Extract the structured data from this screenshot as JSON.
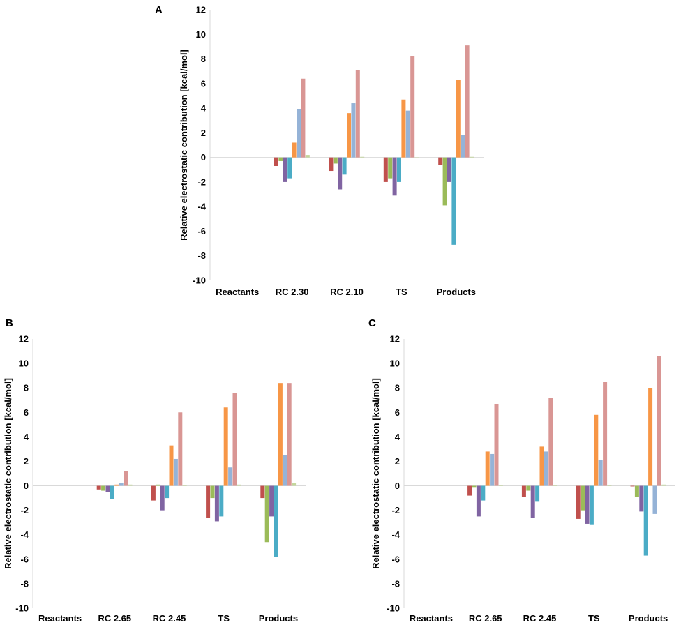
{
  "series_colors": [
    "#c0504d",
    "#9bbb59",
    "#8064a2",
    "#4bacc6",
    "#f79646",
    "#95b3d7",
    "#d99694",
    "#c3d69b"
  ],
  "chart_data": [
    {
      "panel": "A",
      "type": "bar",
      "ylabel": "Relative electrostatic contribution [kcal/mol]",
      "ylim": [
        -10,
        12
      ],
      "yticks": [
        12,
        10,
        8,
        6,
        4,
        2,
        0,
        -2,
        -4,
        -6,
        -8,
        -10
      ],
      "categories": [
        "Reactants",
        "RC 2.30",
        "RC 2.10",
        "TS",
        "Products"
      ],
      "series": [
        {
          "name": "s1",
          "values": [
            0,
            -0.7,
            -1.1,
            -2.0,
            -0.6
          ]
        },
        {
          "name": "s2",
          "values": [
            0,
            -0.3,
            -0.5,
            -1.7,
            -3.9
          ]
        },
        {
          "name": "s3",
          "values": [
            0,
            -2.0,
            -2.6,
            -3.1,
            -2.0
          ]
        },
        {
          "name": "s4",
          "values": [
            0,
            -1.7,
            -1.4,
            -2.0,
            -7.1
          ]
        },
        {
          "name": "s5",
          "values": [
            0,
            1.2,
            3.6,
            4.7,
            6.3
          ]
        },
        {
          "name": "s6",
          "values": [
            0,
            3.9,
            4.4,
            3.8,
            1.8
          ]
        },
        {
          "name": "s7",
          "values": [
            0,
            6.4,
            7.1,
            8.2,
            9.1
          ]
        },
        {
          "name": "s8",
          "values": [
            0,
            0.2,
            0.05,
            -0.05,
            0.05
          ]
        }
      ]
    },
    {
      "panel": "B",
      "type": "bar",
      "ylabel": "Relative electrostatic contribution [kcal/mol]",
      "ylim": [
        -10,
        12
      ],
      "yticks": [
        12,
        10,
        8,
        6,
        4,
        2,
        0,
        -2,
        -4,
        -6,
        -8,
        -10
      ],
      "categories": [
        "Reactants",
        "RC 2.65",
        "RC 2.45",
        "TS",
        "Products"
      ],
      "series": [
        {
          "name": "s1",
          "values": [
            0,
            -0.3,
            -1.2,
            -2.6,
            -1.0
          ]
        },
        {
          "name": "s2",
          "values": [
            0,
            -0.4,
            0.1,
            -1.0,
            -4.6
          ]
        },
        {
          "name": "s3",
          "values": [
            0,
            -0.5,
            -2.0,
            -2.9,
            -2.5
          ]
        },
        {
          "name": "s4",
          "values": [
            0,
            -1.1,
            -1.0,
            -2.5,
            -5.8
          ]
        },
        {
          "name": "s5",
          "values": [
            0,
            0.1,
            3.3,
            6.4,
            8.4
          ]
        },
        {
          "name": "s6",
          "values": [
            0,
            0.2,
            2.2,
            1.5,
            2.5
          ]
        },
        {
          "name": "s7",
          "values": [
            0,
            1.2,
            6.0,
            7.6,
            8.4
          ]
        },
        {
          "name": "s8",
          "values": [
            0,
            0.1,
            0.05,
            0.1,
            0.2
          ]
        }
      ]
    },
    {
      "panel": "C",
      "type": "bar",
      "ylabel": "Relative electrostatic contribution [kcal/mol]",
      "ylim": [
        -10,
        12
      ],
      "yticks": [
        12,
        10,
        8,
        6,
        4,
        2,
        0,
        -2,
        -4,
        -6,
        -8,
        -10
      ],
      "categories": [
        "Reactants",
        "RC 2.65",
        "RC 2.45",
        "TS",
        "Products"
      ],
      "series": [
        {
          "name": "s1",
          "values": [
            0,
            -0.8,
            -0.9,
            -2.7,
            -0.05
          ]
        },
        {
          "name": "s2",
          "values": [
            0,
            -0.1,
            -0.4,
            -2.0,
            -0.9
          ]
        },
        {
          "name": "s3",
          "values": [
            0,
            -2.5,
            -2.6,
            -3.1,
            -2.1
          ]
        },
        {
          "name": "s4",
          "values": [
            0,
            -1.2,
            -1.3,
            -3.2,
            -5.7
          ]
        },
        {
          "name": "s5",
          "values": [
            0,
            2.8,
            3.2,
            5.8,
            8.0
          ]
        },
        {
          "name": "s6",
          "values": [
            0,
            2.6,
            2.8,
            2.1,
            -2.3
          ]
        },
        {
          "name": "s7",
          "values": [
            0,
            6.7,
            7.2,
            8.5,
            10.6
          ]
        },
        {
          "name": "s8",
          "values": [
            0,
            0.05,
            0.05,
            0.05,
            0.1
          ]
        }
      ]
    }
  ]
}
